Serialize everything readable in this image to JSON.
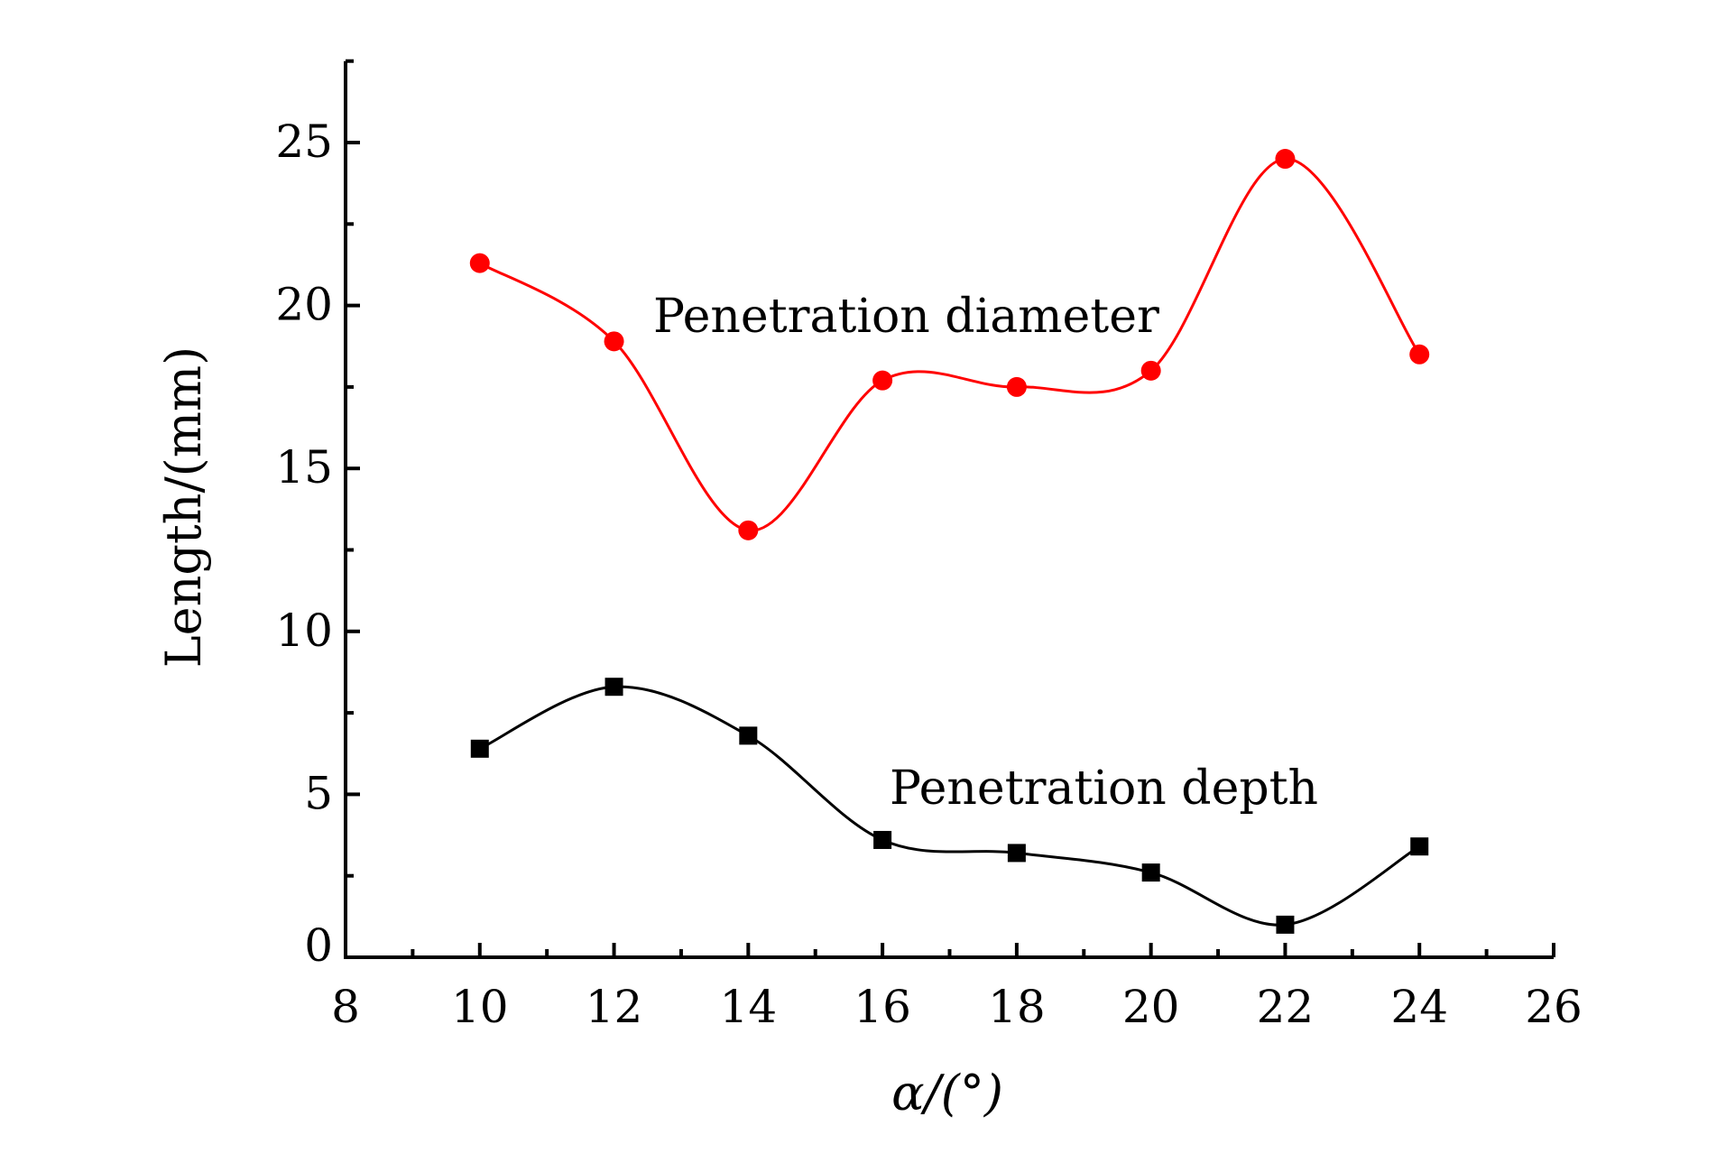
{
  "chart_data": {
    "type": "line",
    "title": "",
    "xlabel": "α/(°)",
    "ylabel": "Length/(mm)",
    "xlim": [
      8,
      26
    ],
    "ylim": [
      0,
      27.5
    ],
    "xticks": [
      "8",
      "10",
      "12",
      "14",
      "16",
      "18",
      "20",
      "22",
      "24",
      "26"
    ],
    "yticks": [
      "0",
      "5",
      "10",
      "15",
      "20",
      "25"
    ],
    "grid": false,
    "legend": "none",
    "x": [
      10,
      12,
      14,
      16,
      18,
      20,
      22,
      24
    ],
    "series": [
      {
        "name": "Penetration diameter",
        "color": "#ff0000",
        "marker": "circle",
        "values": [
          21.3,
          18.9,
          13.1,
          17.7,
          17.5,
          18.0,
          24.5,
          18.5
        ]
      },
      {
        "name": "Penetration depth",
        "color": "#000000",
        "marker": "square",
        "values": [
          6.4,
          8.3,
          6.8,
          3.6,
          3.2,
          2.6,
          1.0,
          3.4
        ]
      }
    ],
    "annotations": [
      "Penetration diameter",
      "Penetration depth"
    ]
  }
}
